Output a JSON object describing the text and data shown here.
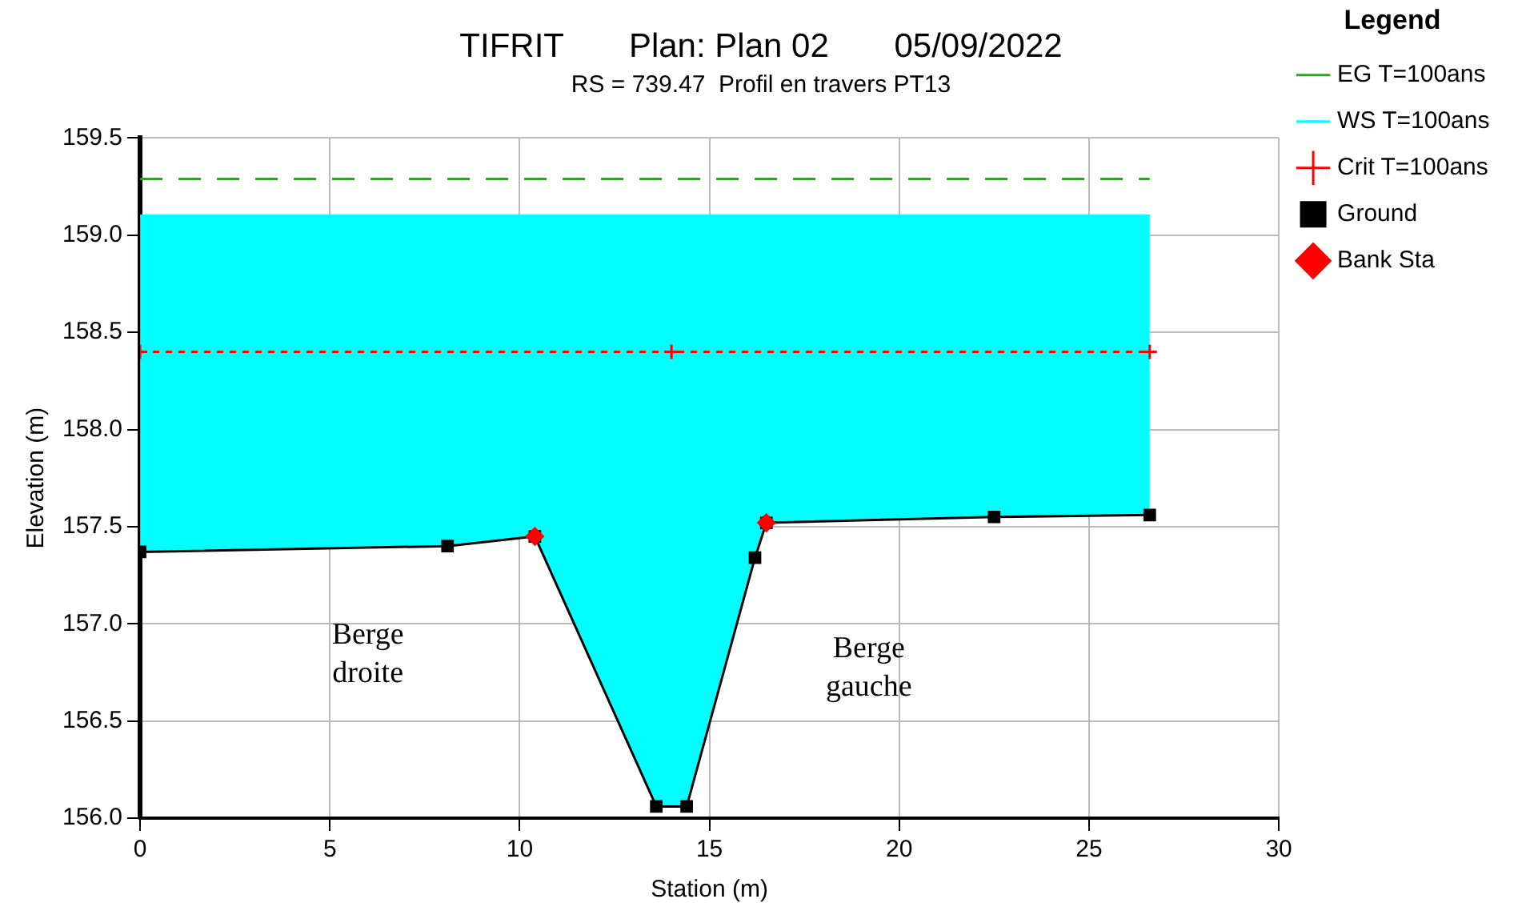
{
  "chart_data": {
    "type": "line",
    "title": "TIFRIT       Plan: Plan 02       05/09/2022",
    "subtitle": "RS = 739.47  Profil en travers PT13",
    "xlabel": "Station (m)",
    "ylabel": "Elevation (m)",
    "legend_title": "Legend",
    "xlim": [
      0,
      30
    ],
    "xticks": [
      0,
      5,
      10,
      15,
      20,
      25,
      30
    ],
    "ylim": [
      156.0,
      159.5
    ],
    "yticks": [
      {
        "value": 156.0,
        "label": "156.0"
      },
      {
        "value": 156.5,
        "label": "156.5"
      },
      {
        "value": 157.0,
        "label": "157.0"
      },
      {
        "value": 157.5,
        "label": "157.5"
      },
      {
        "value": 158.0,
        "label": "158.0"
      },
      {
        "value": 158.5,
        "label": "158.5"
      },
      {
        "value": 159.0,
        "label": "159.0"
      },
      {
        "value": 159.5,
        "label": "159.5"
      }
    ],
    "grid": true,
    "legend": "right",
    "series": [
      {
        "name": "EG T=100ans",
        "type": "line",
        "color": "#33a02c",
        "line_style": "dashed",
        "marker": "none",
        "x": [
          0,
          26.6
        ],
        "values": [
          159.29,
          159.29
        ]
      },
      {
        "name": "WS T=100ans",
        "type": "area",
        "color": "#00ffff",
        "line_style": "solid",
        "marker": "none",
        "x": [
          0,
          26.6
        ],
        "values": [
          159.1,
          159.1
        ]
      },
      {
        "name": "Crit T=100ans",
        "type": "line",
        "color": "#ff0000",
        "line_style": "dotted",
        "marker": "cross",
        "x": [
          0,
          14.0,
          26.6
        ],
        "values": [
          158.4,
          158.4,
          158.4
        ]
      },
      {
        "name": "Ground",
        "type": "line",
        "color": "#000000",
        "line_style": "solid",
        "marker": "square",
        "x": [
          0,
          8.1,
          10.4,
          13.6,
          14.4,
          16.2,
          16.5,
          22.5,
          26.6
        ],
        "values": [
          157.37,
          157.4,
          157.45,
          156.06,
          156.06,
          157.34,
          157.52,
          157.55,
          157.56
        ]
      },
      {
        "name": "Bank Sta",
        "type": "scatter",
        "color": "#ff0000",
        "marker": "diamond",
        "x": [
          10.4,
          16.5
        ],
        "values": [
          157.45,
          157.52
        ]
      }
    ],
    "annotations": [
      "Berge\ndroite",
      "Berge\ngauche"
    ]
  }
}
